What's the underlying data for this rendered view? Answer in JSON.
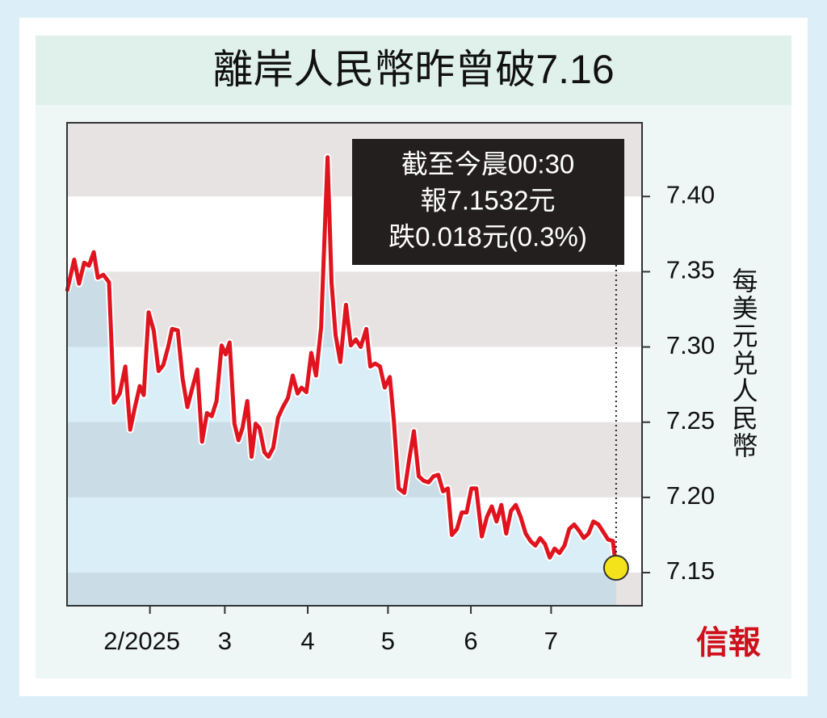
{
  "chart_data": {
    "type": "line",
    "title": "離岸人民幣昨曾破7.16",
    "annotation": [
      "截至今晨00:30",
      "報7.1532元",
      "跌0.018元(0.3%)"
    ],
    "y_axis_label": "每美元兑人民幣",
    "source_logo": "信報",
    "color": "#e0141e",
    "x": [
      0,
      2.7,
      4.5,
      6.4,
      8.2,
      10.0,
      11.5,
      13.6,
      15.7,
      17.5,
      19.7,
      21.8,
      23.6,
      25.4,
      27.2,
      28.7,
      30.5,
      32.4,
      34.2,
      36.0,
      37.8,
      39.3,
      41.4,
      43.2,
      45.0,
      46.9,
      48.7,
      50.5,
      52.3,
      54.1,
      55.9,
      57.8,
      59.3,
      60.8,
      62.6,
      64.1,
      65.6,
      67.4,
      69.0,
      70.5,
      72.0,
      73.8,
      75.3,
      77.1,
      78.9,
      80.7,
      82.6,
      84.4,
      86.2,
      87.7,
      89.5,
      91.3,
      93.1,
      95.0,
      97.4,
      98.9,
      100.4,
      102.2,
      104.3,
      106.1,
      108.0,
      109.8,
      111.9,
      113.4,
      115.2,
      117.0,
      118.8,
      120.7,
      122.2,
      124.0,
      126.1,
      127.9,
      129.7,
      131.5,
      133.4,
      135.2,
      137.0,
      138.8,
      140.6,
      142.4,
      143.9,
      145.8,
      147.6,
      149.4,
      151.2,
      153.0,
      155.1,
      157.0,
      158.8,
      160.6,
      162.4,
      164.2,
      166.0,
      167.8,
      169.6,
      171.5,
      173.3,
      175.1,
      176.9,
      178.7,
      180.5,
      182.3,
      184.1,
      186.0,
      187.8,
      189.6,
      191.4,
      193.2,
      195.0,
      196.8,
      198.7,
      200.5,
      202.3,
      204.1,
      205.3
    ],
    "values": [
      7.337,
      7.358,
      7.342,
      7.356,
      7.354,
      7.363,
      7.346,
      7.348,
      7.343,
      7.263,
      7.269,
      7.287,
      7.245,
      7.26,
      7.274,
      7.268,
      7.323,
      7.311,
      7.284,
      7.288,
      7.3,
      7.312,
      7.311,
      7.279,
      7.26,
      7.273,
      7.285,
      7.237,
      7.256,
      7.254,
      7.264,
      7.301,
      7.295,
      7.303,
      7.249,
      7.238,
      7.246,
      7.264,
      7.227,
      7.249,
      7.246,
      7.23,
      7.227,
      7.233,
      7.253,
      7.26,
      7.266,
      7.281,
      7.269,
      7.273,
      7.27,
      7.296,
      7.281,
      7.313,
      7.426,
      7.343,
      7.308,
      7.29,
      7.328,
      7.301,
      7.305,
      7.3,
      7.312,
      7.287,
      7.289,
      7.287,
      7.273,
      7.28,
      7.251,
      7.206,
      7.203,
      7.225,
      7.244,
      7.214,
      7.211,
      7.21,
      7.214,
      7.215,
      7.204,
      7.206,
      7.175,
      7.179,
      7.19,
      7.19,
      7.206,
      7.206,
      7.174,
      7.187,
      7.194,
      7.184,
      7.195,
      7.176,
      7.191,
      7.195,
      7.187,
      7.176,
      7.171,
      7.168,
      7.173,
      7.169,
      7.16,
      7.166,
      7.163,
      7.168,
      7.179,
      7.182,
      7.178,
      7.173,
      7.176,
      7.184,
      7.182,
      7.177,
      7.172,
      7.171,
      7.1532
    ],
    "xlim": [
      0,
      215
    ],
    "xticks": [
      {
        "value": 31,
        "label": "2/2025"
      },
      {
        "value": 59,
        "label": "3"
      },
      {
        "value": 90,
        "label": "4"
      },
      {
        "value": 120,
        "label": "5"
      },
      {
        "value": 151,
        "label": "6"
      },
      {
        "value": 181,
        "label": "7"
      }
    ],
    "ylim": [
      7.128,
      7.449
    ],
    "yticks": [
      {
        "value": 7.4,
        "label": "7.40"
      },
      7.35,
      {
        "value": 7.3,
        "label": "7.30"
      },
      7.25,
      {
        "value": 7.2,
        "label": "7.20"
      },
      7.15
    ]
  }
}
